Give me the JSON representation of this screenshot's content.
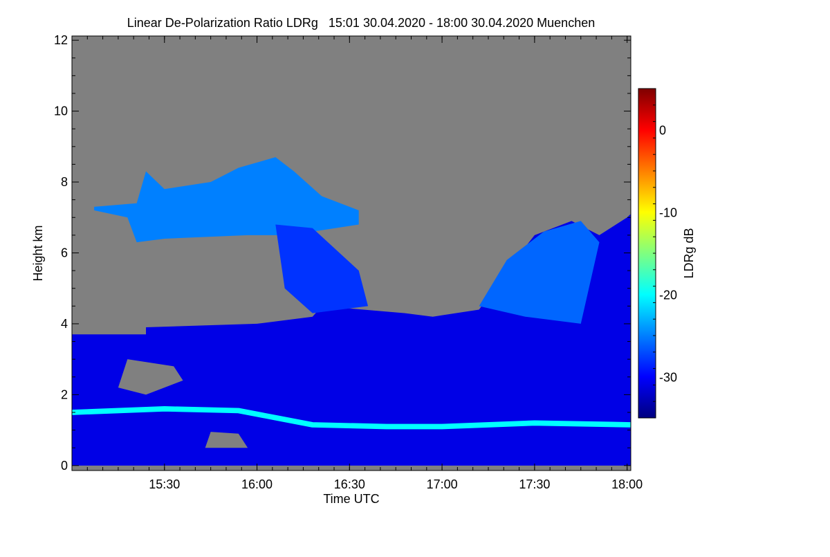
{
  "chart_data": {
    "type": "heatmap",
    "title": "Linear De-Polarization Ratio LDRg   15:01 30.04.2020 - 18:00 30.04.2020 Muenchen",
    "xlabel": "Time UTC",
    "ylabel": "Height km",
    "colorbar_label": "LDRg dB",
    "xlim_hours": [
      15.0,
      18.02
    ],
    "ylim": [
      -0.14,
      12.12
    ],
    "x_ticks": [
      {
        "v": 15.5,
        "label": "15:30"
      },
      {
        "v": 16.0,
        "label": "16:00"
      },
      {
        "v": 16.5,
        "label": "16:30"
      },
      {
        "v": 17.0,
        "label": "17:00"
      },
      {
        "v": 17.5,
        "label": "17:30"
      },
      {
        "v": 18.0,
        "label": "18:00"
      }
    ],
    "y_ticks": [
      {
        "v": 0,
        "label": "0"
      },
      {
        "v": 2,
        "label": "2"
      },
      {
        "v": 4,
        "label": "4"
      },
      {
        "v": 6,
        "label": "6"
      },
      {
        "v": 8,
        "label": "8"
      },
      {
        "v": 10,
        "label": "10"
      },
      {
        "v": 12,
        "label": "12"
      }
    ],
    "colorbar_range": [
      -35,
      5
    ],
    "colorbar_ticks": [
      {
        "v": 0,
        "label": "0"
      },
      {
        "v": -10,
        "label": "-10"
      },
      {
        "v": -20,
        "label": "-20"
      },
      {
        "v": -30,
        "label": "-30"
      }
    ],
    "colormap": "jet",
    "no_data_color": "#808080",
    "regions": [
      {
        "name": "lower-cloud-mass",
        "ldr_db": -31,
        "points": [
          [
            15.0,
            0
          ],
          [
            15.0,
            3.7
          ],
          [
            15.4,
            3.7
          ],
          [
            15.4,
            3.9
          ],
          [
            16.0,
            4.0
          ],
          [
            16.3,
            4.2
          ],
          [
            16.35,
            4.5
          ],
          [
            16.8,
            4.3
          ],
          [
            16.95,
            4.2
          ],
          [
            17.2,
            4.4
          ],
          [
            17.35,
            5.5
          ],
          [
            17.5,
            6.5
          ],
          [
            17.7,
            6.9
          ],
          [
            17.85,
            6.5
          ],
          [
            18.0,
            7.0
          ],
          [
            18.02,
            7.1
          ],
          [
            18.02,
            0
          ]
        ]
      },
      {
        "name": "upper-cirrus",
        "ldr_db": -25,
        "points": [
          [
            15.12,
            7.3
          ],
          [
            15.35,
            7.4
          ],
          [
            15.4,
            8.3
          ],
          [
            15.5,
            7.8
          ],
          [
            15.75,
            8.0
          ],
          [
            15.9,
            8.4
          ],
          [
            16.1,
            8.7
          ],
          [
            16.2,
            8.3
          ],
          [
            16.35,
            7.6
          ],
          [
            16.55,
            7.2
          ],
          [
            16.55,
            6.8
          ],
          [
            16.3,
            6.6
          ],
          [
            16.2,
            6.5
          ],
          [
            15.95,
            6.5
          ],
          [
            15.5,
            6.4
          ],
          [
            15.35,
            6.3
          ],
          [
            15.3,
            7.0
          ],
          [
            15.12,
            7.2
          ]
        ]
      },
      {
        "name": "fall-streaks",
        "ldr_db": -28,
        "points": [
          [
            16.1,
            6.8
          ],
          [
            16.3,
            6.7
          ],
          [
            16.55,
            5.5
          ],
          [
            16.6,
            4.5
          ],
          [
            16.3,
            4.3
          ],
          [
            16.15,
            5.0
          ]
        ]
      },
      {
        "name": "right-cloud",
        "ldr_db": -26,
        "points": [
          [
            17.2,
            4.5
          ],
          [
            17.35,
            5.8
          ],
          [
            17.55,
            6.6
          ],
          [
            17.75,
            6.9
          ],
          [
            17.85,
            6.3
          ],
          [
            17.75,
            4.0
          ],
          [
            17.45,
            4.2
          ]
        ]
      },
      {
        "name": "gap-lower-left",
        "ldr_db": null,
        "points": [
          [
            15.25,
            2.2
          ],
          [
            15.3,
            3.0
          ],
          [
            15.55,
            2.8
          ],
          [
            15.6,
            2.4
          ],
          [
            15.4,
            2.0
          ]
        ]
      },
      {
        "name": "gap-near-ground",
        "ldr_db": null,
        "points": [
          [
            15.72,
            0.5
          ],
          [
            15.75,
            0.95
          ],
          [
            15.9,
            0.9
          ],
          [
            15.95,
            0.5
          ]
        ]
      }
    ],
    "bands": [
      {
        "name": "bright-layer",
        "ldr_db": -20,
        "thickness_km": 0.15,
        "points": [
          [
            15.0,
            1.5
          ],
          [
            15.5,
            1.6
          ],
          [
            15.9,
            1.55
          ],
          [
            16.1,
            1.35
          ],
          [
            16.3,
            1.15
          ],
          [
            16.7,
            1.1
          ],
          [
            17.0,
            1.1
          ],
          [
            17.5,
            1.2
          ],
          [
            18.02,
            1.15
          ]
        ]
      }
    ]
  }
}
